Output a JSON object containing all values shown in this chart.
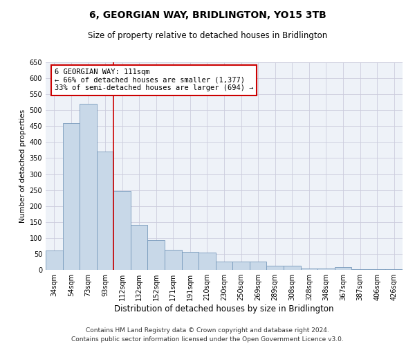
{
  "title": "6, GEORGIAN WAY, BRIDLINGTON, YO15 3TB",
  "subtitle": "Size of property relative to detached houses in Bridlington",
  "xlabel": "Distribution of detached houses by size in Bridlington",
  "ylabel": "Number of detached properties",
  "categories": [
    "34sqm",
    "54sqm",
    "73sqm",
    "93sqm",
    "112sqm",
    "132sqm",
    "152sqm",
    "171sqm",
    "191sqm",
    "210sqm",
    "230sqm",
    "250sqm",
    "269sqm",
    "289sqm",
    "308sqm",
    "328sqm",
    "348sqm",
    "367sqm",
    "387sqm",
    "406sqm",
    "426sqm"
  ],
  "values": [
    60,
    460,
    520,
    370,
    248,
    140,
    93,
    62,
    57,
    55,
    25,
    25,
    25,
    12,
    12,
    5,
    5,
    8,
    3,
    3,
    3
  ],
  "bar_color": "#c8d8e8",
  "bar_edge_color": "#7799bb",
  "vline_x_index": 4,
  "vline_color": "#cc0000",
  "annotation_box_color": "#cc0000",
  "annotation_text_line1": "6 GEORGIAN WAY: 111sqm",
  "annotation_text_line2": "← 66% of detached houses are smaller (1,377)",
  "annotation_text_line3": "33% of semi-detached houses are larger (694) →",
  "ylim": [
    0,
    650
  ],
  "yticks": [
    0,
    50,
    100,
    150,
    200,
    250,
    300,
    350,
    400,
    450,
    500,
    550,
    600,
    650
  ],
  "footer_line1": "Contains HM Land Registry data © Crown copyright and database right 2024.",
  "footer_line2": "Contains public sector information licensed under the Open Government Licence v3.0.",
  "bg_color": "#eef2f8",
  "grid_color": "#ccccdd",
  "title_fontsize": 10,
  "subtitle_fontsize": 8.5,
  "xlabel_fontsize": 8.5,
  "ylabel_fontsize": 7.5,
  "tick_fontsize": 7,
  "annotation_fontsize": 7.5,
  "footer_fontsize": 6.5
}
